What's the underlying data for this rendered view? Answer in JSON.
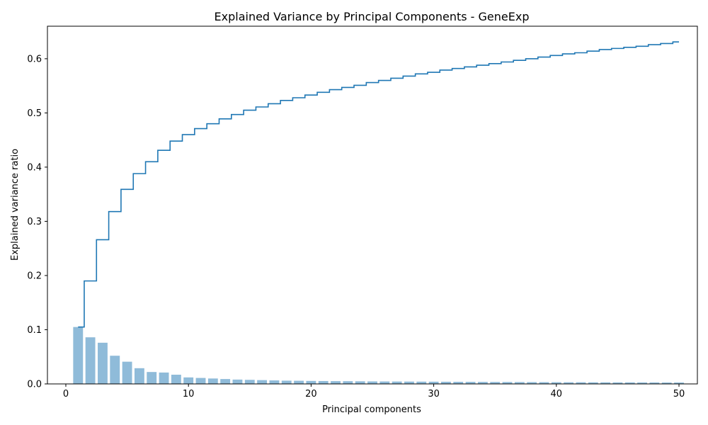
{
  "chart_data": {
    "type": "bar",
    "title": "Explained Variance by Principal Components - GeneExp",
    "xlabel": "Principal components",
    "ylabel": "Explained variance ratio",
    "xlim": [
      -1.5,
      51.5
    ],
    "ylim": [
      0,
      0.66
    ],
    "xticks": [
      0,
      10,
      20,
      30,
      40,
      50
    ],
    "yticks": [
      0.0,
      0.1,
      0.2,
      0.3,
      0.4,
      0.5,
      0.6
    ],
    "xtick_labels": [
      "0",
      "10",
      "20",
      "30",
      "40",
      "50"
    ],
    "ytick_labels": [
      "0.0",
      "0.1",
      "0.2",
      "0.3",
      "0.4",
      "0.5",
      "0.6"
    ],
    "grid": false,
    "colors": {
      "bars": "#1f77b4",
      "bar_alpha": 0.5,
      "step": "#1f77b4"
    },
    "x": [
      1,
      2,
      3,
      4,
      5,
      6,
      7,
      8,
      9,
      10,
      11,
      12,
      13,
      14,
      15,
      16,
      17,
      18,
      19,
      20,
      21,
      22,
      23,
      24,
      25,
      26,
      27,
      28,
      29,
      30,
      31,
      32,
      33,
      34,
      35,
      36,
      37,
      38,
      39,
      40,
      41,
      42,
      43,
      44,
      45,
      46,
      47,
      48,
      49,
      50
    ],
    "series": [
      {
        "kind": "bar",
        "values": [
          0.105,
          0.086,
          0.076,
          0.052,
          0.041,
          0.029,
          0.022,
          0.021,
          0.017,
          0.012,
          0.011,
          0.01,
          0.009,
          0.008,
          0.0075,
          0.007,
          0.0065,
          0.006,
          0.0058,
          0.0055,
          0.0053,
          0.0051,
          0.005,
          0.0048,
          0.0046,
          0.0045,
          0.0044,
          0.0043,
          0.0042,
          0.0041,
          0.004,
          0.0039,
          0.0038,
          0.0037,
          0.0036,
          0.0035,
          0.0034,
          0.0033,
          0.0032,
          0.0031,
          0.003,
          0.003,
          0.0029,
          0.0029,
          0.0028,
          0.0028,
          0.0027,
          0.0027,
          0.0026,
          0.0026
        ]
      },
      {
        "kind": "step",
        "values": [
          0.105,
          0.19,
          0.266,
          0.318,
          0.359,
          0.388,
          0.41,
          0.431,
          0.448,
          0.46,
          0.471,
          0.48,
          0.489,
          0.497,
          0.505,
          0.511,
          0.517,
          0.523,
          0.528,
          0.533,
          0.538,
          0.543,
          0.547,
          0.551,
          0.556,
          0.56,
          0.564,
          0.568,
          0.572,
          0.575,
          0.579,
          0.582,
          0.585,
          0.588,
          0.591,
          0.594,
          0.597,
          0.6,
          0.603,
          0.606,
          0.609,
          0.611,
          0.614,
          0.617,
          0.619,
          0.621,
          0.623,
          0.626,
          0.628,
          0.631
        ]
      }
    ]
  }
}
